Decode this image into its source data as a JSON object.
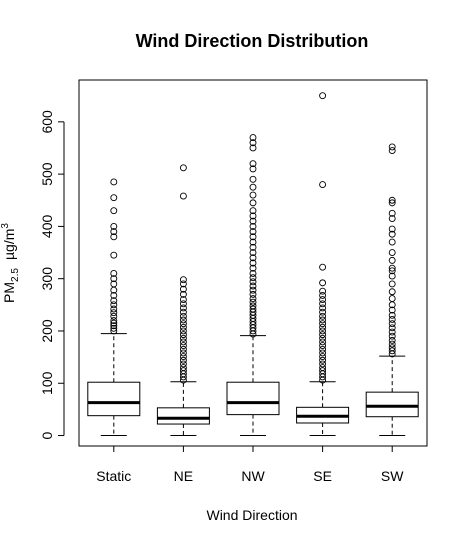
{
  "chart_data": {
    "type": "box",
    "title": "Wind Direction Distribution",
    "xlabel": "Wind Direction",
    "ylabel": {
      "main": "PM",
      "subscript": "2.5",
      "unit_base": "µg/m",
      "unit_superscript": "3"
    },
    "ylim": [
      -20,
      680
    ],
    "yticks": [
      0,
      100,
      200,
      300,
      400,
      500,
      600
    ],
    "grid": false,
    "categories": [
      "Static",
      "NE",
      "NW",
      "SE",
      "SW"
    ],
    "boxes": [
      {
        "name": "Static",
        "whisker_low": 0,
        "q1": 38,
        "median": 63,
        "q3": 102,
        "whisker_high": 195,
        "outliers": [
          200,
          205,
          210,
          215,
          220,
          228,
          235,
          242,
          250,
          258,
          268,
          278,
          290,
          300,
          310,
          345,
          380,
          390,
          400,
          430,
          455,
          485
        ]
      },
      {
        "name": "NE",
        "whisker_low": 0,
        "q1": 22,
        "median": 33,
        "q3": 53,
        "whisker_high": 103,
        "outliers": [
          106,
          112,
          118,
          124,
          130,
          137,
          144,
          151,
          158,
          165,
          172,
          179,
          186,
          193,
          200,
          207,
          214,
          221,
          228,
          236,
          244,
          252,
          260,
          270,
          280,
          290,
          298,
          458,
          512
        ]
      },
      {
        "name": "NW",
        "whisker_low": 0,
        "q1": 40,
        "median": 63,
        "q3": 102,
        "whisker_high": 191,
        "outliers": [
          194,
          200,
          206,
          212,
          218,
          224,
          230,
          236,
          242,
          248,
          255,
          262,
          270,
          278,
          286,
          294,
          302,
          310,
          320,
          330,
          340,
          350,
          360,
          370,
          380,
          390,
          400,
          410,
          420,
          430,
          445,
          460,
          475,
          490,
          510,
          520,
          550,
          560,
          570
        ]
      },
      {
        "name": "SE",
        "whisker_low": 0,
        "q1": 24,
        "median": 37,
        "q3": 54,
        "whisker_high": 103,
        "outliers": [
          106,
          112,
          118,
          124,
          130,
          137,
          144,
          151,
          158,
          165,
          172,
          179,
          186,
          193,
          200,
          207,
          214,
          221,
          228,
          236,
          244,
          252,
          260,
          268,
          276,
          292,
          322,
          480,
          650
        ]
      },
      {
        "name": "SW",
        "whisker_low": 0,
        "q1": 36,
        "median": 56,
        "q3": 83,
        "whisker_high": 152,
        "outliers": [
          156,
          162,
          168,
          175,
          182,
          190,
          198,
          206,
          214,
          222,
          230,
          240,
          250,
          262,
          275,
          290,
          305,
          315,
          320,
          335,
          350,
          370,
          385,
          395,
          415,
          425,
          445,
          450,
          545,
          552
        ]
      }
    ]
  }
}
